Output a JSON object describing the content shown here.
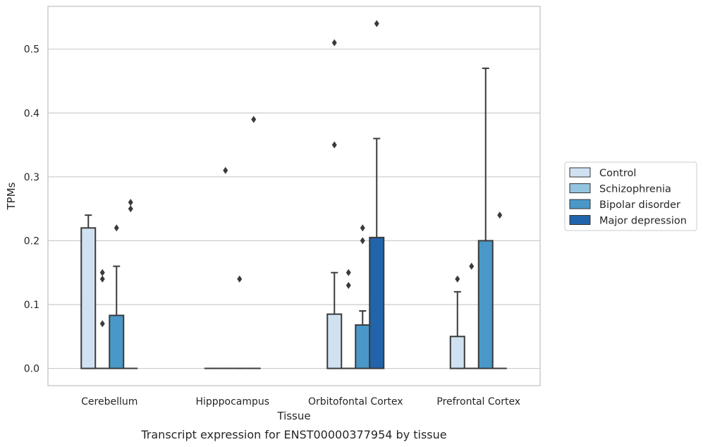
{
  "chart_data": {
    "type": "bar",
    "title": "",
    "caption": "Transcript expression for ENST00000377954 by tissue",
    "xlabel": "Tissue",
    "ylabel": "TPMs",
    "ylim": [
      -0.027,
      0.567
    ],
    "yticks": [
      "0.0",
      "0.1",
      "0.2",
      "0.3",
      "0.4",
      "0.5"
    ],
    "grid": true,
    "legend_position": "right",
    "categories": [
      "Cerebellum",
      "Hipppocampus",
      "Orbitofontal Cortex",
      "Prefrontal Cortex"
    ],
    "series": [
      {
        "name": "Control",
        "color": "#d0e1f2",
        "values": [
          0.22,
          0.0,
          0.085,
          0.05
        ],
        "err_upper": [
          0.24,
          null,
          0.15,
          0.12
        ],
        "outliers": [
          [],
          [],
          [
            0.51,
            0.35
          ],
          [
            0.14
          ]
        ]
      },
      {
        "name": "Schizophrenia",
        "color": "#94c4df",
        "values": [
          0.0,
          0.0,
          0.0,
          0.0
        ],
        "err_upper": [
          null,
          null,
          null,
          null
        ],
        "outliers": [
          [
            0.15,
            0.14,
            0.07
          ],
          [
            0.31
          ],
          [
            0.15,
            0.13
          ],
          [
            0.16
          ]
        ]
      },
      {
        "name": "Bipolar disorder",
        "color": "#4a98c9",
        "values": [
          0.083,
          0.0,
          0.068,
          0.2
        ],
        "err_upper": [
          0.16,
          null,
          0.09,
          0.47
        ],
        "outliers": [
          [
            0.22
          ],
          [
            0.14
          ],
          [
            0.22,
            0.2
          ],
          []
        ]
      },
      {
        "name": "Major depression",
        "color": "#2164ab",
        "values": [
          0.0,
          0.0,
          0.205,
          0.0
        ],
        "err_upper": [
          null,
          null,
          0.36,
          null
        ],
        "outliers": [
          [
            0.26,
            0.25
          ],
          [
            0.39
          ],
          [
            0.54
          ],
          [
            0.24
          ]
        ]
      }
    ]
  }
}
